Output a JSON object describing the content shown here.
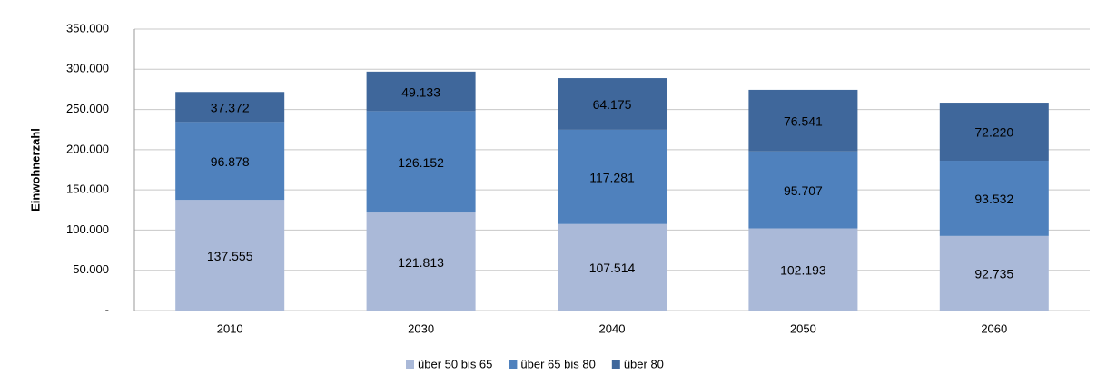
{
  "chart_data": {
    "type": "stacked_bar",
    "y_label": "Einwohnerzahl",
    "categories": [
      "2010",
      "2030",
      "2040",
      "2050",
      "2060"
    ],
    "series": [
      {
        "name": "über 50 bis 65",
        "color": "#aab9d8",
        "values": [
          137555,
          121813,
          107514,
          102193,
          92735
        ],
        "value_labels": [
          "137.555",
          "121.813",
          "107.514",
          "102.193",
          "92.735"
        ]
      },
      {
        "name": "über 65 bis 80",
        "color": "#4f81bd",
        "values": [
          96878,
          126152,
          117281,
          95707,
          93532
        ],
        "value_labels": [
          "96.878",
          "126.152",
          "117.281",
          "95.707",
          "93.532"
        ]
      },
      {
        "name": "über 80",
        "color": "#3f679b",
        "values": [
          37372,
          49133,
          64175,
          76541,
          72220
        ],
        "value_labels": [
          "37.372",
          "49.133",
          "64.175",
          "76.541",
          "72.220"
        ]
      }
    ],
    "ylim": [
      0,
      350000
    ],
    "yticks": [
      {
        "value": 0,
        "label": "-"
      },
      {
        "value": 50000,
        "label": "50.000"
      },
      {
        "value": 100000,
        "label": "100.000"
      },
      {
        "value": 150000,
        "label": "150.000"
      },
      {
        "value": 200000,
        "label": "200.000"
      },
      {
        "value": 250000,
        "label": "250.000"
      },
      {
        "value": 300000,
        "label": "300.000"
      },
      {
        "value": 350000,
        "label": "350.000"
      }
    ],
    "grid": true,
    "legend": "bottom"
  }
}
